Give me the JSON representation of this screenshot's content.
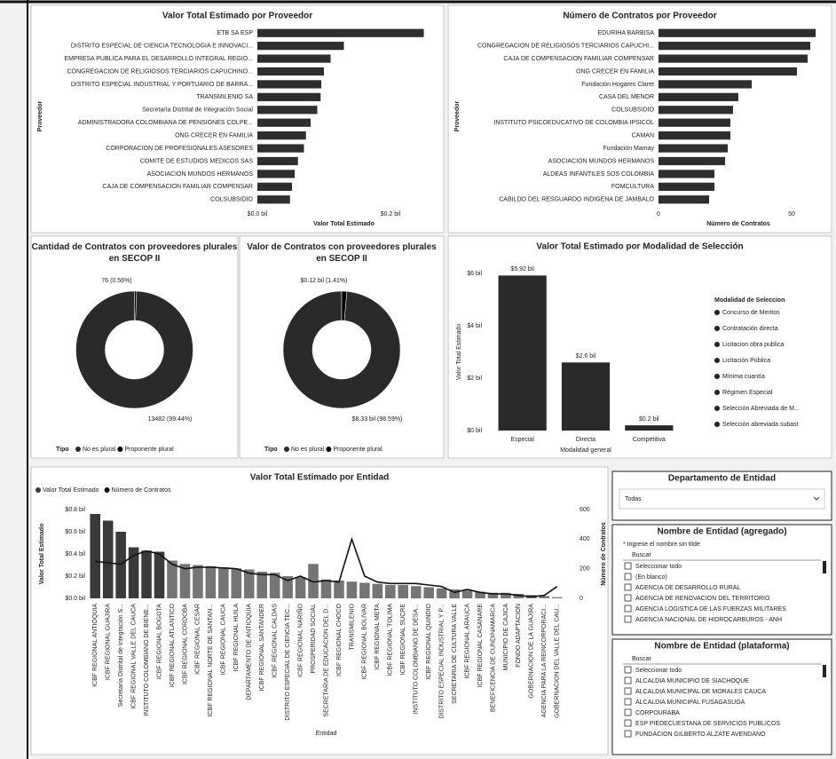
{
  "chart_data": [
    {
      "type": "barh",
      "title": "Valor Total Estimado por Proveedor",
      "x_label": "Valor Total Estimado",
      "y_label": "Proveedor",
      "color": "#2e2e2e",
      "categories": [
        "ETB SA ESP",
        "DISTRITO ESPECIAL DE CIENCIA TECNOLOGIA E INNOVACI...",
        "EMPRESA PUBLICA PARA EL DESARROLLO INTEGRAL REGIO...",
        "CONGREGACION DE RELIGIOSOS TERCIARIOS CAPUCHINO...",
        "DISTRITO ESPECIAL INDUSTRIAL Y PORTUARIO DE BARRA...",
        "TRANSMILENIO SA",
        "Secretaría Distrital de Integración Social",
        "ADMINISTRADORA COLOMBIANA DE PENSIONES COLPE...",
        "ONG CRECER EN FAMILIA",
        "CORPORACION DE PROFESIONALES ASESORES",
        "COMITE DE ESTUDIOS MEDICOS SAS",
        "ASOCIACION MUNDOS HERMANOS",
        "CAJA DE COMPENSACION FAMILIAR COMPENSAR",
        "COLSUBSIDIO"
      ],
      "values": [
        0.25,
        0.13,
        0.11,
        0.1,
        0.096,
        0.095,
        0.09,
        0.08,
        0.073,
        0.07,
        0.061,
        0.056,
        0.052,
        0.049
      ],
      "xlim": [
        0,
        0.26
      ],
      "xticks": [
        {
          "value": 0,
          "label": "$0.0 bil"
        },
        {
          "value": 0.2,
          "label": "$0.2 bil"
        }
      ]
    },
    {
      "type": "barh",
      "title": "Número de Contratos por Proveedor",
      "x_label": "Número de Contratos",
      "y_label": "Proveedor",
      "color": "#2e2e2e",
      "categories": [
        "EDURIHA BARBISA",
        "CONGREGACION DE RELIGIOSOS TERCIARIOS CAPUCHI...",
        "CAJA DE COMPENSACION FAMILIAR COMPENSAR",
        "ONG CRECER EN FAMILIA",
        "Fundación Hogares Claret",
        "CASA DEL MENOR",
        "COLSUBSIDIO",
        "INSTITUTO PSICOEDUCATIVO DE COLOMBIA IPSICOL",
        "CAMAN",
        "Fundación Mamay",
        "ASOCIACION MUNDOS HERMANOS",
        "ALDEAS INFANTILES SOS COLOMBIA",
        "FOMCULTURA",
        "CABILDO DEL RESGUARDO INDIGENA DE JAMBALO"
      ],
      "values": [
        59,
        57,
        56,
        52,
        35,
        30,
        28,
        27,
        27,
        26,
        25,
        21,
        21,
        19
      ],
      "xlim": [
        0,
        60
      ],
      "xticks": [
        0,
        50
      ]
    },
    {
      "type": "donut",
      "title": "Cantidad de Contratos con proveedores plurales en SECOP II",
      "legend_title": "Tipo",
      "categories": [
        "No es plural",
        "Proponente plural"
      ],
      "values": [
        13482,
        76
      ],
      "value_labels": [
        "13482 (99.44%)",
        "76 (0.56%)"
      ],
      "colors": [
        "#2a2a2a",
        "#000000"
      ]
    },
    {
      "type": "donut",
      "title": "Valor de Contratos con proveedores plurales en SECOP II",
      "legend_title": "Tipo",
      "categories": [
        "No es plural",
        "Proponente plural"
      ],
      "values": [
        8.33,
        0.12
      ],
      "value_labels": [
        "$8.33 bil (98.59%)",
        "$0.12 bil (1.41%)"
      ],
      "colors": [
        "#2a2a2a",
        "#000000"
      ]
    },
    {
      "type": "bar",
      "title": "Valor Total Estimado por Modalidad de Selección",
      "x_label": "Modalidad general",
      "y_label": "Valor Total Estimado",
      "color": "#2a2a2a",
      "categories": [
        "Especial",
        "Directa",
        "Competitiva"
      ],
      "values": [
        5.92,
        2.6,
        0.2
      ],
      "value_labels": [
        "$5.92 bil",
        "$2.6 bil",
        "$0.2 bil"
      ],
      "ylim": [
        0,
        6
      ],
      "yticks": [
        {
          "value": 0,
          "label": "$0 bil"
        },
        {
          "value": 2,
          "label": "$2 bil"
        },
        {
          "value": 4,
          "label": "$4 bil"
        },
        {
          "value": 6,
          "label": "$6 bil"
        }
      ],
      "legend_title": "Modalidad de Seleccion",
      "legend_items": [
        "Concurso de Meritos",
        "Contratación directa",
        "Licitacion obra publica",
        "Licitación Pública",
        "Mínima cuantía",
        "Régimen Especial",
        "Selección Abreviada de M...",
        "Selección abreviada subast"
      ]
    },
    {
      "type": "combo",
      "title": "Valor Total Estimado por Entidad",
      "x_label": "Entidad",
      "y_label": "Valor Total Estimado",
      "y2_label": "Número de Contratos",
      "categories": [
        "ICBF REGIONAL ANTIOQUIA",
        "ICBF REGIONAL GUAJIRA",
        "Secretaría Distrital de Integración S...",
        "ICBF REGIONAL VALLE DEL CAUCA",
        "INSTITUTO COLOMBIANO DE BIENE...",
        "ICBF REGIONAL BOGOTA",
        "ICBF REGIONAL ATLANTICO",
        "ICBF REGIONAL CORDOBA",
        "ICBF REGIONAL CESAR",
        "ICBF REGIONAL NORTE DE SANTAN...",
        "ICBF REGIONAL CAUCA",
        "ICBF REGIONAL HUILA",
        "DEPARTAMENTO DE ANTIOQUIA",
        "ICBF REGIONAL SANTANDER",
        "ICBF REGIONAL CALDAS",
        "DISTRITO ESPECIAL DE CIENCIA TEC...",
        "ICBF REGIONAL NARIÑO",
        "PROSPERIDAD SOCIAL",
        "SECRETARIA DE EDUCACION DEL D...",
        "ICBF REGIONAL CHOCO",
        "TRANSMILENIO",
        "ICBF REGIONAL BOLIVAR",
        "ICBF REGIONAL META",
        "ICBF REGIONAL TOLIMA",
        "ICBF REGIONAL SUCRE",
        "INSTITUTO COLOMBIANO DE DESA...",
        "ICBF REGIONAL QUINDIO",
        "DISTRITO ESPECIAL INDUSTRIAL Y P...",
        "SECRETARIA DE CULTURA VALLE",
        "ICBF REGIONAL ARAUCA",
        "ICBF REGIONAL CASANARE",
        "BENEFICENCIA DE CUNDINAMARCA",
        "MUNICIPIO DE CAJICA",
        "FONDO ADAPTACION",
        "GOBERNACION DE LA GUAJIRA",
        "AGENCIA PARA LA REINCORPORACI...",
        "GOBERNACION DEL VALLE DEL CAU..."
      ],
      "series": [
        {
          "name": "Valor Total Estimado",
          "color": "#3a3a3a",
          "values": [
            0.76,
            0.7,
            0.6,
            0.46,
            0.43,
            0.42,
            0.34,
            0.31,
            0.3,
            0.29,
            0.28,
            0.27,
            0.26,
            0.24,
            0.23,
            0.2,
            0.19,
            0.31,
            0.17,
            0.16,
            0.15,
            0.14,
            0.13,
            0.12,
            0.12,
            0.11,
            0.1,
            0.09,
            0.08,
            0.07,
            0.06,
            0.05,
            0.05,
            0.04,
            0.03,
            0.02,
            0.01
          ]
        },
        {
          "name": "Número de Contratos",
          "color": "#111111",
          "axis": "y2",
          "values": [
            250,
            240,
            230,
            290,
            320,
            300,
            230,
            200,
            210,
            210,
            205,
            200,
            170,
            160,
            160,
            120,
            150,
            110,
            120,
            110,
            400,
            150,
            110,
            100,
            100,
            100,
            90,
            80,
            40,
            60,
            40,
            30,
            30,
            20,
            10,
            20,
            80
          ]
        }
      ],
      "ylim": [
        0,
        0.8
      ],
      "yticks": [
        {
          "value": 0,
          "label": "$0.0 bil"
        },
        {
          "value": 0.2,
          "label": "$0.2 bil"
        },
        {
          "value": 0.4,
          "label": "$0.4 bil"
        },
        {
          "value": 0.6,
          "label": "$0.6 bil"
        },
        {
          "value": 0.8,
          "label": "$0.8 bil"
        }
      ],
      "y2lim": [
        0,
        600
      ],
      "y2ticks": [
        0,
        200,
        400,
        600
      ]
    }
  ],
  "slicers": [
    {
      "title": "Departamento de Entidad",
      "dropdown": "Todas"
    },
    {
      "title": "Nombre de Entidad (agregado)",
      "hint": "* Ingrese el nombre sin tilde",
      "search": "Buscar",
      "items": [
        "Seleccionar todo",
        "(En blanco)",
        "AGENCIA DE DESARROLLO RURAL",
        "AGENCIA DE RENOVACION DEL TERRITORIO",
        "AGENCIA LOGISTICA DE LAS FUERZAS MILITARES",
        "AGENCIA NACIONAL DE HIDROCARBUROS - ANH"
      ]
    },
    {
      "title": "Nombre de Entidad (plataforma)",
      "search": "Buscar",
      "items": [
        "Seleccionar todo",
        "ALCALDIA MUNICIPIO DE SIACHOQUE",
        "ALCALDIA MUNICIPAL DE MORALES CAUCA",
        "ALCALDIA MUNICIPAL FUSAGASUGA",
        "CORPOURABA",
        "ESP PIEDECUESTANA DE SERVICIOS PUBLICOS",
        "FUNDACION GILBERTO ALZATE AVENDANO"
      ]
    }
  ]
}
